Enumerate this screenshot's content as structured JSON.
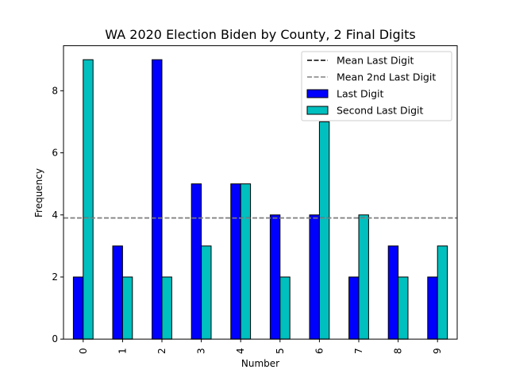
{
  "chart_data": {
    "type": "bar",
    "title": "WA 2020 Election Biden by County, 2 Final Digits",
    "xlabel": "Number",
    "ylabel": "Frequency",
    "categories": [
      "0",
      "1",
      "2",
      "3",
      "4",
      "5",
      "6",
      "7",
      "8",
      "9"
    ],
    "series": [
      {
        "name": "Last Digit",
        "values": [
          2,
          3,
          9,
          5,
          5,
          4,
          4,
          2,
          3,
          2
        ],
        "color": "#0000ff"
      },
      {
        "name": "Second Last Digit",
        "values": [
          9,
          2,
          2,
          3,
          5,
          2,
          7,
          4,
          2,
          3
        ],
        "color": "#00bfbf"
      }
    ],
    "reference_lines": [
      {
        "name": "Mean Last Digit",
        "value": 3.9,
        "color": "#000000",
        "style": "dashed"
      },
      {
        "name": "Mean 2nd Last Digit",
        "value": 3.9,
        "color": "#808080",
        "style": "dashed"
      }
    ],
    "ylim": [
      0,
      9.45
    ],
    "yticks": [
      0,
      2,
      4,
      6,
      8
    ],
    "grid": false,
    "legend_position": "top-right"
  }
}
